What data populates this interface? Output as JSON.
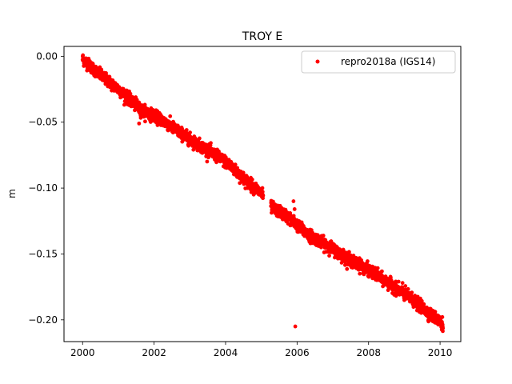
{
  "chart_data": {
    "type": "scatter",
    "title": "TROY E",
    "xlabel": "",
    "ylabel": "m",
    "xlim": [
      1999.48,
      2010.58
    ],
    "ylim": [
      -0.2165,
      0.0075
    ],
    "xticks": [
      2000,
      2002,
      2004,
      2006,
      2008,
      2010
    ],
    "xtick_labels": [
      "2000",
      "2002",
      "2004",
      "2006",
      "2008",
      "2010"
    ],
    "yticks": [
      0.0,
      -0.05,
      -0.1,
      -0.15,
      -0.2
    ],
    "ytick_labels": [
      "0.00",
      "−0.05",
      "−0.10",
      "−0.15",
      "−0.20"
    ],
    "grid": false,
    "legend_position": "top-right",
    "series": [
      {
        "name": "repro2018a (IGS14)",
        "color": "#ff0000",
        "marker": "circle",
        "trend": {
          "x_start": 2000.0,
          "x_end": 2010.08,
          "breakpoints": [
            [
              2000.0,
              -0.002
            ],
            [
              2000.4,
              -0.012
            ],
            [
              2001.0,
              -0.025
            ],
            [
              2001.6,
              -0.04
            ],
            [
              2002.2,
              -0.048
            ],
            [
              2003.0,
              -0.063
            ],
            [
              2003.6,
              -0.073
            ],
            [
              2004.0,
              -0.08
            ],
            [
              2004.6,
              -0.095
            ],
            [
              2005.0,
              -0.104
            ],
            [
              2005.3,
              -0.115
            ],
            [
              2005.7,
              -0.121
            ],
            [
              2006.3,
              -0.135
            ],
            [
              2007.0,
              -0.146
            ],
            [
              2007.5,
              -0.155
            ],
            [
              2008.0,
              -0.162
            ],
            [
              2008.6,
              -0.173
            ],
            [
              2009.2,
              -0.184
            ],
            [
              2009.6,
              -0.193
            ],
            [
              2010.08,
              -0.203
            ]
          ],
          "gaps": [
            [
              2005.05,
              2005.27
            ]
          ],
          "samples_per_year": 300,
          "scatter": 0.0022
        },
        "outliers": [
          {
            "x": 2001.52,
            "y": -0.033
          },
          {
            "x": 2001.58,
            "y": -0.051
          },
          {
            "x": 2002.7,
            "y": -0.056
          },
          {
            "x": 2005.9,
            "y": -0.11
          },
          {
            "x": 2005.93,
            "y": -0.116
          },
          {
            "x": 2005.95,
            "y": -0.205
          },
          {
            "x": 2008.95,
            "y": -0.172
          }
        ]
      }
    ]
  }
}
